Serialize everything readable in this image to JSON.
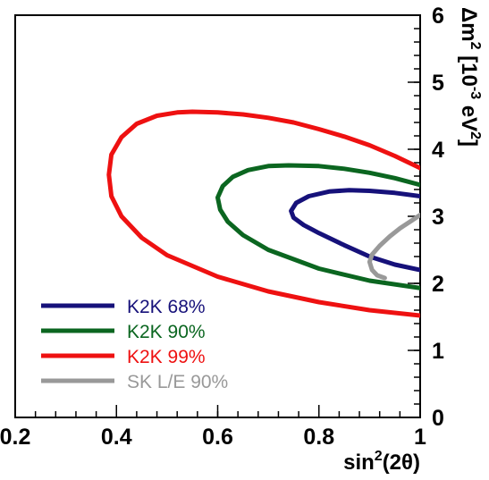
{
  "chart_data": {
    "type": "line",
    "title": "",
    "xlabel": {
      "base": "sin",
      "sup": "2",
      "rest": "(2θ)"
    },
    "ylabel": {
      "pre": "Δm",
      "sup1": "2",
      "mid": " [10",
      "sup2": "-3",
      "mid2": " eV",
      "sup3": "2",
      "post": "]"
    },
    "xlim": [
      0.2,
      1.0
    ],
    "ylim": [
      0,
      6.0
    ],
    "xticks": [
      {
        "value": 0.2,
        "label": "0.2"
      },
      {
        "value": 0.4,
        "label": "0.4"
      },
      {
        "value": 0.6,
        "label": "0.6"
      },
      {
        "value": 0.8,
        "label": "0.8"
      },
      {
        "value": 1.0,
        "label": "1"
      }
    ],
    "yticks": [
      {
        "value": 0,
        "label": "0"
      },
      {
        "value": 1,
        "label": "1"
      },
      {
        "value": 2,
        "label": "2"
      },
      {
        "value": 3,
        "label": "3"
      },
      {
        "value": 4,
        "label": "4"
      },
      {
        "value": 5,
        "label": "5"
      },
      {
        "value": 6,
        "label": "6"
      }
    ],
    "x_minor_step": 0.04,
    "y_minor_step": 0.2,
    "grid": false,
    "legend_position": "bottom-left",
    "series": [
      {
        "name": "K2K 99%",
        "color": "#ee1111",
        "points": [
          [
            1.0,
            3.72
          ],
          [
            0.95,
            3.9
          ],
          [
            0.9,
            4.06
          ],
          [
            0.85,
            4.19
          ],
          [
            0.8,
            4.3
          ],
          [
            0.75,
            4.4
          ],
          [
            0.7,
            4.47
          ],
          [
            0.65,
            4.52
          ],
          [
            0.6,
            4.55
          ],
          [
            0.55,
            4.56
          ],
          [
            0.52,
            4.55
          ],
          [
            0.48,
            4.5
          ],
          [
            0.44,
            4.38
          ],
          [
            0.41,
            4.18
          ],
          [
            0.39,
            3.92
          ],
          [
            0.385,
            3.62
          ],
          [
            0.39,
            3.3
          ],
          [
            0.41,
            3.0
          ],
          [
            0.45,
            2.68
          ],
          [
            0.5,
            2.42
          ],
          [
            0.6,
            2.1
          ],
          [
            0.7,
            1.88
          ],
          [
            0.8,
            1.72
          ],
          [
            0.9,
            1.6
          ],
          [
            1.0,
            1.52
          ]
        ]
      },
      {
        "name": "K2K 90%",
        "color": "#0b6620",
        "points": [
          [
            1.0,
            3.47
          ],
          [
            0.95,
            3.57
          ],
          [
            0.9,
            3.65
          ],
          [
            0.85,
            3.71
          ],
          [
            0.8,
            3.75
          ],
          [
            0.74,
            3.76
          ],
          [
            0.7,
            3.75
          ],
          [
            0.66,
            3.69
          ],
          [
            0.63,
            3.59
          ],
          [
            0.61,
            3.45
          ],
          [
            0.6,
            3.28
          ],
          [
            0.605,
            3.1
          ],
          [
            0.62,
            2.92
          ],
          [
            0.65,
            2.72
          ],
          [
            0.7,
            2.5
          ],
          [
            0.8,
            2.22
          ],
          [
            0.9,
            2.04
          ],
          [
            1.0,
            1.93
          ]
        ]
      },
      {
        "name": "K2K 68%",
        "color": "#16117a",
        "points": [
          [
            1.0,
            3.3
          ],
          [
            0.95,
            3.35
          ],
          [
            0.9,
            3.38
          ],
          [
            0.86,
            3.39
          ],
          [
            0.82,
            3.37
          ],
          [
            0.78,
            3.3
          ],
          [
            0.755,
            3.2
          ],
          [
            0.745,
            3.08
          ],
          [
            0.75,
            2.98
          ],
          [
            0.77,
            2.87
          ],
          [
            0.8,
            2.75
          ],
          [
            0.85,
            2.57
          ],
          [
            0.9,
            2.4
          ],
          [
            0.95,
            2.28
          ],
          [
            1.0,
            2.2
          ]
        ]
      },
      {
        "name": "SK L/E 90%",
        "color": "#999999",
        "points": [
          [
            1.0,
            3.02
          ],
          [
            0.98,
            2.92
          ],
          [
            0.96,
            2.82
          ],
          [
            0.94,
            2.7
          ],
          [
            0.92,
            2.56
          ],
          [
            0.905,
            2.43
          ],
          [
            0.9,
            2.32
          ],
          [
            0.905,
            2.2
          ],
          [
            0.915,
            2.12
          ],
          [
            0.93,
            2.08
          ]
        ]
      }
    ],
    "legend": [
      {
        "name": "K2K 68%",
        "color": "#16117a"
      },
      {
        "name": "K2K 90%",
        "color": "#0b6620"
      },
      {
        "name": "K2K 99%",
        "color": "#ee1111"
      },
      {
        "name": "SK L/E 90%",
        "color": "#999999"
      }
    ]
  }
}
